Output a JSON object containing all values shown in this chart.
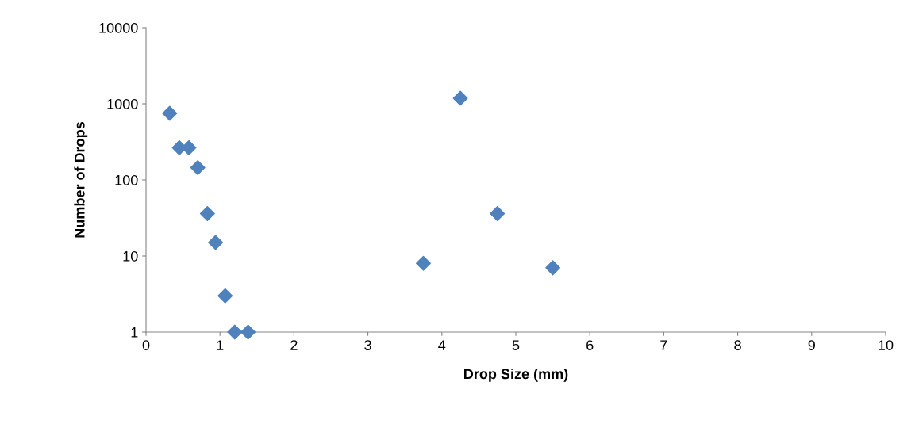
{
  "chart_data": {
    "type": "scatter",
    "xlabel": "Drop Size (mm)",
    "ylabel": "Number of Drops",
    "series": [
      {
        "color": "#4f81bd",
        "x": [
          0.32,
          0.45,
          0.58,
          0.7,
          0.83,
          0.94,
          1.07,
          1.2,
          1.38,
          3.75,
          4.25,
          4.75,
          5.5
        ],
        "values": [
          750,
          265,
          265,
          145,
          36,
          15,
          3,
          1,
          1,
          8,
          1180,
          36,
          7
        ]
      }
    ],
    "marker": "diamond",
    "log": "y",
    "grid": false,
    "legend": false,
    "xlim": [
      0,
      10
    ],
    "xticks": [
      0,
      1,
      2,
      3,
      4,
      5,
      6,
      7,
      8,
      9,
      10
    ],
    "ylim": [
      1,
      10000
    ],
    "yticks": [
      1,
      10,
      100,
      1000,
      10000
    ]
  }
}
